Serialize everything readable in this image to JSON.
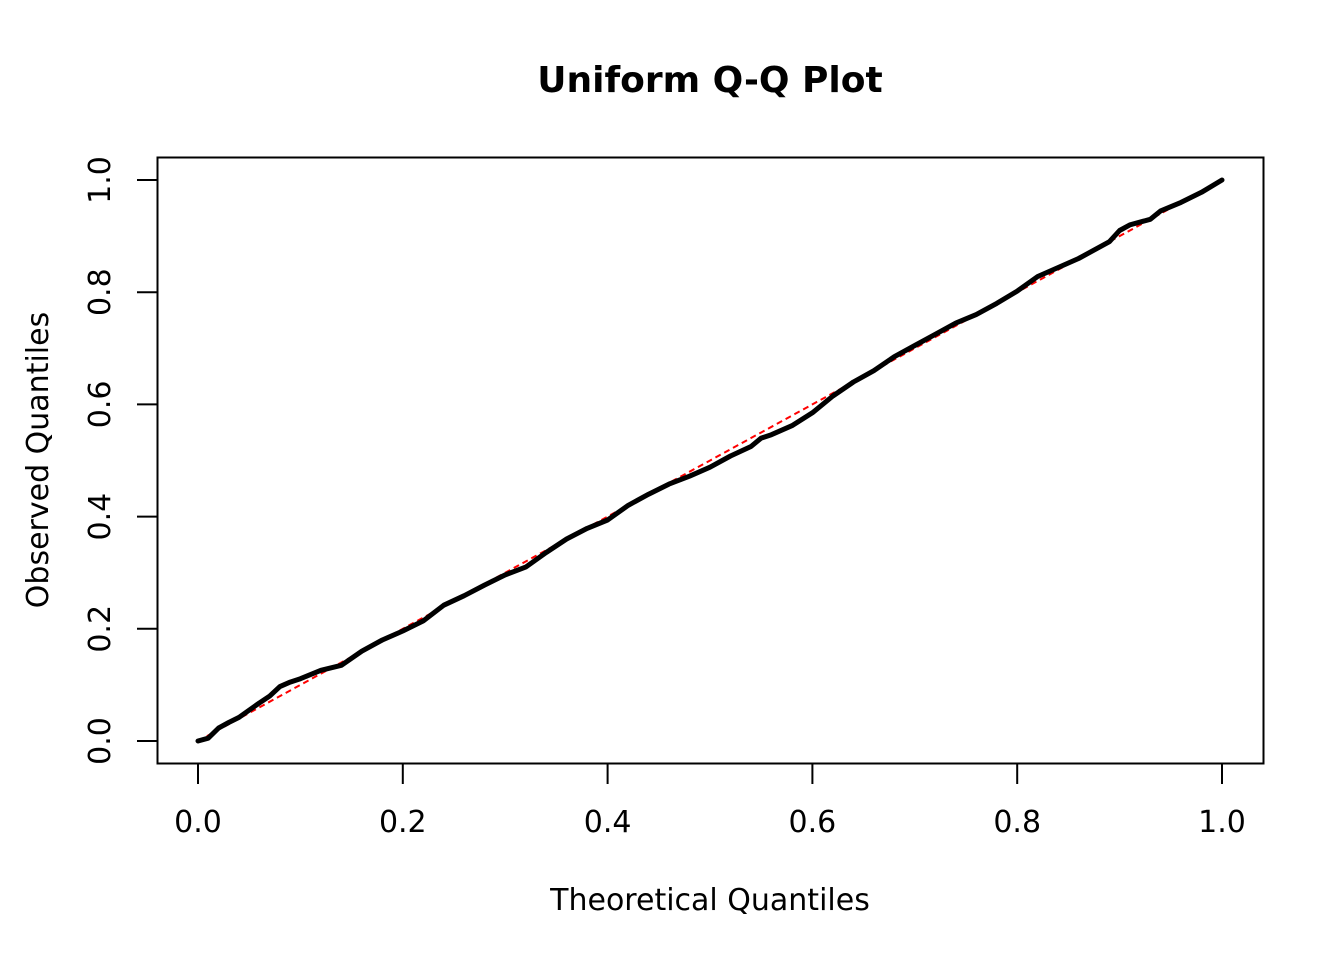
{
  "chart_data": {
    "type": "line",
    "title": "Uniform Q-Q Plot",
    "xlabel": "Theoretical Quantiles",
    "ylabel": "Observed Quantiles",
    "xlim": [
      0.0,
      1.0
    ],
    "ylim": [
      0.0,
      1.0
    ],
    "x_ticks": [
      "0.0",
      "0.2",
      "0.4",
      "0.6",
      "0.8",
      "1.0"
    ],
    "y_ticks": [
      "0.0",
      "0.2",
      "0.4",
      "0.6",
      "0.8",
      "1.0"
    ],
    "grid": false,
    "reference_line": {
      "from": [
        0,
        0
      ],
      "to": [
        1,
        1
      ],
      "color": "#ff0000",
      "style": "dashed"
    },
    "series": [
      {
        "color": "#000000",
        "x": [
          0.0,
          0.01,
          0.02,
          0.03,
          0.04,
          0.05,
          0.06,
          0.07,
          0.08,
          0.09,
          0.1,
          0.12,
          0.14,
          0.16,
          0.18,
          0.2,
          0.22,
          0.24,
          0.26,
          0.28,
          0.3,
          0.32,
          0.34,
          0.36,
          0.38,
          0.4,
          0.42,
          0.44,
          0.46,
          0.48,
          0.5,
          0.52,
          0.54,
          0.55,
          0.56,
          0.58,
          0.6,
          0.62,
          0.64,
          0.66,
          0.68,
          0.7,
          0.72,
          0.74,
          0.76,
          0.78,
          0.8,
          0.82,
          0.84,
          0.86,
          0.88,
          0.89,
          0.9,
          0.91,
          0.93,
          0.94,
          0.96,
          0.98,
          1.0
        ],
        "y": [
          0.0,
          0.005,
          0.023,
          0.033,
          0.042,
          0.055,
          0.068,
          0.08,
          0.097,
          0.105,
          0.111,
          0.126,
          0.135,
          0.16,
          0.18,
          0.196,
          0.214,
          0.242,
          0.259,
          0.278,
          0.296,
          0.31,
          0.336,
          0.36,
          0.379,
          0.394,
          0.42,
          0.44,
          0.458,
          0.472,
          0.488,
          0.508,
          0.525,
          0.54,
          0.546,
          0.562,
          0.585,
          0.615,
          0.64,
          0.66,
          0.685,
          0.705,
          0.725,
          0.745,
          0.76,
          0.78,
          0.802,
          0.828,
          0.844,
          0.86,
          0.88,
          0.89,
          0.91,
          0.92,
          0.93,
          0.945,
          0.96,
          0.978,
          1.0
        ]
      }
    ]
  }
}
